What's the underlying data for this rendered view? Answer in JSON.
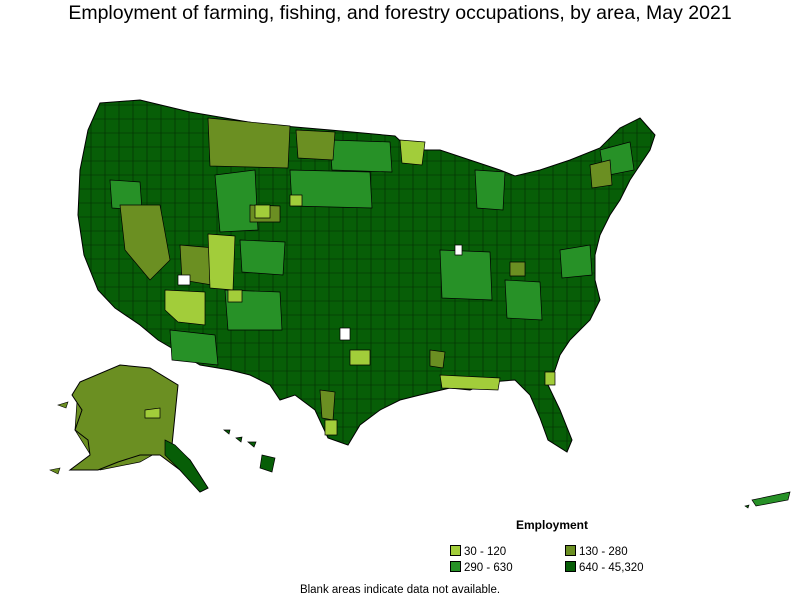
{
  "title": "Employment of farming, fishing, and forestry occupations, by area, May 2021",
  "legend": {
    "title": "Employment",
    "items": [
      {
        "label": "30 - 120",
        "color": "#a2cd3a"
      },
      {
        "label": "130 - 280",
        "color": "#6b8f22"
      },
      {
        "label": "290 - 630",
        "color": "#279127"
      },
      {
        "label": "640 - 45,320",
        "color": "#075e07"
      }
    ]
  },
  "note": "Blank areas indicate data not available.",
  "colors": {
    "border": "#000000",
    "blank": "#ffffff"
  }
}
